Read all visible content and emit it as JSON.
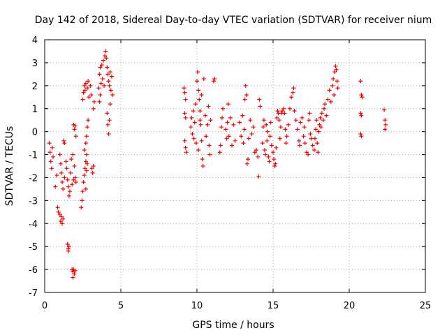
{
  "chart_data": {
    "type": "scatter",
    "title": "Day 142 of 2018, Sidereal Day-to-day VTEC variation (SDTVAR) for receiver nium",
    "xlabel": "GPS time / hours",
    "ylabel": "SDTVAR / TECUs",
    "xlim": [
      0,
      25
    ],
    "ylim": [
      -7,
      4
    ],
    "xticks": [
      0,
      5,
      10,
      15,
      20,
      25
    ],
    "yticks": [
      -7,
      -6,
      -5,
      -4,
      -3,
      -2,
      -1,
      0,
      1,
      2,
      3,
      4
    ],
    "grid": true,
    "marker": "plus",
    "color": "#ff0000",
    "series": [
      {
        "name": "SDTVAR",
        "points": [
          [
            0.3,
            -0.5
          ],
          [
            0.35,
            -0.9
          ],
          [
            0.4,
            -1.3
          ],
          [
            0.45,
            -1.6
          ],
          [
            0.5,
            -0.7
          ],
          [
            0.55,
            -1.1
          ],
          [
            0.7,
            -2.4
          ],
          [
            0.8,
            -1.9
          ],
          [
            0.85,
            -3.3
          ],
          [
            0.9,
            -3.5
          ],
          [
            1.0,
            -3.6
          ],
          [
            1.05,
            -3.9
          ],
          [
            1.1,
            -3.7
          ],
          [
            1.15,
            -4.0
          ],
          [
            1.2,
            -3.8
          ],
          [
            1.0,
            -1.0
          ],
          [
            1.05,
            -1.4
          ],
          [
            1.1,
            -1.8
          ],
          [
            1.15,
            -2.2
          ],
          [
            1.2,
            -2.5
          ],
          [
            1.3,
            -2.0
          ],
          [
            1.25,
            -0.4
          ],
          [
            1.3,
            -0.5
          ],
          [
            1.4,
            -1.3
          ],
          [
            1.45,
            -1.6
          ],
          [
            1.5,
            -2.1
          ],
          [
            1.55,
            -2.4
          ],
          [
            1.5,
            -4.9
          ],
          [
            1.55,
            -5.1
          ],
          [
            1.6,
            -5.0
          ],
          [
            1.55,
            -5.2
          ],
          [
            1.6,
            -2.8
          ],
          [
            1.65,
            -2.6
          ],
          [
            1.7,
            -1.8
          ],
          [
            1.75,
            -1.2
          ],
          [
            1.8,
            -2.3
          ],
          [
            1.85,
            -1.0
          ],
          [
            1.9,
            -2.1
          ],
          [
            1.95,
            -1.5
          ],
          [
            1.8,
            -6.0
          ],
          [
            1.85,
            -6.1
          ],
          [
            1.9,
            -6.0
          ],
          [
            1.95,
            -6.2
          ],
          [
            2.0,
            -6.05
          ],
          [
            1.85,
            -6.35
          ],
          [
            1.9,
            0.3
          ],
          [
            1.95,
            0.1
          ],
          [
            2.0,
            0.25
          ],
          [
            2.05,
            -0.2
          ],
          [
            2.0,
            -2.0
          ],
          [
            2.05,
            -2.2
          ],
          [
            2.4,
            -3.3
          ],
          [
            2.45,
            -3.0
          ],
          [
            2.5,
            -2.6
          ],
          [
            2.55,
            -2.2
          ],
          [
            2.6,
            -1.9
          ],
          [
            2.65,
            -1.6
          ],
          [
            2.7,
            -1.3
          ],
          [
            2.75,
            -1.0
          ],
          [
            2.6,
            -0.8
          ],
          [
            2.7,
            -0.5
          ],
          [
            2.75,
            -0.2
          ],
          [
            2.8,
            0.2
          ],
          [
            2.85,
            0.5
          ],
          [
            2.7,
            -2.5
          ],
          [
            2.75,
            -1.7
          ],
          [
            2.8,
            -1.4
          ],
          [
            2.5,
            1.4
          ],
          [
            2.55,
            1.7
          ],
          [
            2.6,
            2.0
          ],
          [
            2.65,
            1.8
          ],
          [
            2.7,
            2.1
          ],
          [
            2.8,
            1.9
          ],
          [
            2.85,
            2.2
          ],
          [
            2.9,
            1.5
          ],
          [
            3.0,
            2.0
          ],
          [
            3.05,
            1.6
          ],
          [
            3.1,
            -1.6
          ],
          [
            3.15,
            -1.8
          ],
          [
            3.2,
            -1.5
          ],
          [
            3.2,
            1.0
          ],
          [
            3.25,
            1.3
          ],
          [
            3.55,
            1.9
          ],
          [
            3.6,
            2.5
          ],
          [
            3.65,
            2.8
          ],
          [
            3.7,
            2.1
          ],
          [
            3.75,
            2.9
          ],
          [
            3.8,
            2.3
          ],
          [
            3.85,
            3.1
          ],
          [
            3.9,
            2.0
          ],
          [
            3.95,
            3.3
          ],
          [
            4.0,
            3.5
          ],
          [
            4.05,
            3.2
          ],
          [
            4.1,
            2.8
          ],
          [
            4.15,
            2.5
          ],
          [
            4.2,
            2.2
          ],
          [
            4.25,
            2.0
          ],
          [
            4.3,
            2.6
          ],
          [
            4.35,
            1.8
          ],
          [
            4.4,
            2.4
          ],
          [
            4.45,
            1.6
          ],
          [
            4.1,
            0.8
          ],
          [
            4.15,
            0.3
          ],
          [
            4.2,
            -0.1
          ],
          [
            4.25,
            0.5
          ],
          [
            4.3,
            1.2
          ],
          [
            3.6,
            1.3
          ],
          [
            3.65,
            1.6
          ],
          [
            9.15,
            1.9
          ],
          [
            9.2,
            1.7
          ],
          [
            9.25,
            1.4
          ],
          [
            9.2,
            0.8
          ],
          [
            9.25,
            0.6
          ],
          [
            9.2,
            -0.4
          ],
          [
            9.25,
            -0.7
          ],
          [
            9.3,
            -0.9
          ],
          [
            9.6,
            0.2
          ],
          [
            9.65,
            0.6
          ],
          [
            9.7,
            -0.1
          ],
          [
            9.75,
            0.9
          ],
          [
            9.8,
            -0.3
          ],
          [
            9.85,
            0.4
          ],
          [
            9.9,
            1.2
          ],
          [
            9.95,
            -0.5
          ],
          [
            10.0,
            2.2
          ],
          [
            10.05,
            2.6
          ],
          [
            10.1,
            1.8
          ],
          [
            10.15,
            1.4
          ],
          [
            10.2,
            0.9
          ],
          [
            10.25,
            0.3
          ],
          [
            10.3,
            -0.4
          ],
          [
            10.35,
            -1.2
          ],
          [
            10.4,
            -1.5
          ],
          [
            10.1,
            -0.8
          ],
          [
            10.2,
            0.5
          ],
          [
            10.3,
            1.6
          ],
          [
            10.45,
            2.3
          ],
          [
            10.55,
            0.7
          ],
          [
            10.6,
            -0.2
          ],
          [
            10.7,
            0.3
          ],
          [
            10.75,
            1.1
          ],
          [
            10.8,
            -0.6
          ],
          [
            10.85,
            -1.0
          ],
          [
            10.9,
            0.5
          ],
          [
            11.1,
            2.2
          ],
          [
            11.15,
            2.3
          ],
          [
            11.5,
            -0.9
          ],
          [
            11.55,
            -0.6
          ],
          [
            11.6,
            0.2
          ],
          [
            11.65,
            0.6
          ],
          [
            11.7,
            1.0
          ],
          [
            11.9,
            0.1
          ],
          [
            11.95,
            -0.3
          ],
          [
            12.0,
            0.4
          ],
          [
            12.05,
            1.2
          ],
          [
            12.1,
            -0.2
          ],
          [
            12.2,
            0.6
          ],
          [
            12.3,
            -0.6
          ],
          [
            12.4,
            0.3
          ],
          [
            12.5,
            -0.4
          ],
          [
            12.8,
            0.4
          ],
          [
            12.9,
            -0.2
          ],
          [
            13.0,
            0.7
          ],
          [
            13.05,
            -0.5
          ],
          [
            13.1,
            0.1
          ],
          [
            13.15,
            1.4
          ],
          [
            13.2,
            2.0
          ],
          [
            13.25,
            1.6
          ],
          [
            13.3,
            -1.4
          ],
          [
            13.35,
            -1.2
          ],
          [
            13.4,
            -0.3
          ],
          [
            13.5,
            0.5
          ],
          [
            13.6,
            -0.1
          ],
          [
            13.7,
            0.2
          ],
          [
            13.8,
            -0.9
          ],
          [
            13.9,
            -0.8
          ],
          [
            14.0,
            -1.1
          ],
          [
            14.05,
            -1.95
          ],
          [
            14.1,
            1.4
          ],
          [
            14.15,
            1.1
          ],
          [
            14.3,
            -0.5
          ],
          [
            14.35,
            0.2
          ],
          [
            14.4,
            0.5
          ],
          [
            14.45,
            -0.8
          ],
          [
            14.5,
            -1.0
          ],
          [
            14.55,
            0.3
          ],
          [
            14.6,
            -0.4
          ],
          [
            14.65,
            0.0
          ],
          [
            14.7,
            -1.1
          ],
          [
            14.75,
            -1.3
          ],
          [
            14.8,
            -0.2
          ],
          [
            14.85,
            0.4
          ],
          [
            14.9,
            -0.6
          ],
          [
            15.0,
            -0.9
          ],
          [
            15.05,
            -1.2
          ],
          [
            15.1,
            -1.5
          ],
          [
            15.15,
            -1.4
          ],
          [
            15.2,
            -0.7
          ],
          [
            15.25,
            0.6
          ],
          [
            15.3,
            0.9
          ],
          [
            15.35,
            0.8
          ],
          [
            15.4,
            0.5
          ],
          [
            15.45,
            -0.3
          ],
          [
            15.5,
            0.2
          ],
          [
            15.55,
            0.8
          ],
          [
            15.6,
            0.9
          ],
          [
            15.7,
            1.0
          ],
          [
            15.75,
            0.8
          ],
          [
            15.8,
            0.1
          ],
          [
            15.85,
            -0.5
          ],
          [
            15.9,
            -0.2
          ],
          [
            16.0,
            0.3
          ],
          [
            16.1,
            1.0
          ],
          [
            16.2,
            1.5
          ],
          [
            16.3,
            1.7
          ],
          [
            16.35,
            1.9
          ],
          [
            16.4,
            0.9
          ],
          [
            16.5,
            0.5
          ],
          [
            16.6,
            0.1
          ],
          [
            16.7,
            -0.4
          ],
          [
            16.75,
            -0.6
          ],
          [
            16.8,
            0.4
          ],
          [
            16.9,
            0.6
          ],
          [
            17.0,
            -0.2
          ],
          [
            17.05,
            0.2
          ],
          [
            17.1,
            -0.5
          ],
          [
            17.2,
            -0.9
          ],
          [
            17.3,
            -1.0
          ],
          [
            17.35,
            0.5
          ],
          [
            17.4,
            0.8
          ],
          [
            17.45,
            -0.1
          ],
          [
            17.5,
            -0.3
          ],
          [
            17.6,
            -0.6
          ],
          [
            17.7,
            -0.8
          ],
          [
            17.75,
            -0.3
          ],
          [
            17.8,
            0.1
          ],
          [
            17.85,
            0.5
          ],
          [
            17.9,
            -0.5
          ],
          [
            17.95,
            -0.9
          ],
          [
            18.0,
            0.0
          ],
          [
            18.05,
            0.3
          ],
          [
            18.1,
            0.6
          ],
          [
            18.15,
            0.2
          ],
          [
            18.2,
            0.8
          ],
          [
            18.3,
            0.5
          ],
          [
            18.35,
            1.0
          ],
          [
            18.4,
            1.2
          ],
          [
            18.5,
            0.7
          ],
          [
            18.6,
            1.4
          ],
          [
            18.7,
            1.8
          ],
          [
            18.8,
            1.3
          ],
          [
            18.9,
            2.0
          ],
          [
            18.95,
            2.3
          ],
          [
            19.0,
            1.6
          ],
          [
            19.05,
            2.6
          ],
          [
            19.1,
            2.85
          ],
          [
            19.15,
            2.7
          ],
          [
            19.2,
            2.2
          ],
          [
            19.25,
            1.9
          ],
          [
            20.75,
            2.2
          ],
          [
            20.8,
            1.6
          ],
          [
            20.85,
            1.5
          ],
          [
            20.75,
            0.8
          ],
          [
            20.8,
            0.7
          ],
          [
            20.75,
            -0.1
          ],
          [
            20.8,
            -0.2
          ],
          [
            22.3,
            0.95
          ],
          [
            22.35,
            0.5
          ],
          [
            22.4,
            0.3
          ],
          [
            22.35,
            0.1
          ]
        ]
      }
    ]
  }
}
